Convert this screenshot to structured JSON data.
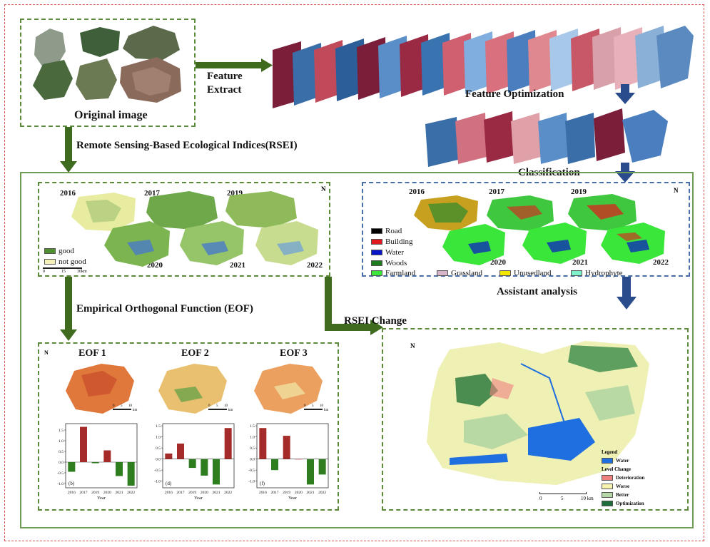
{
  "labels": {
    "original_image": "Original image",
    "feature_extract_1": "Feature",
    "feature_extract_2": "Extract",
    "feature_optimization": "Feature Optimization",
    "classification": "Classification",
    "rsei": "Remote Sensing-Based Ecological Indices(RSEI)",
    "eof": "Empirical Orthogonal Function (EOF)",
    "rsei_change": "RSEI Change",
    "assistant_analysis": "Assistant analysis"
  },
  "rsei_panel": {
    "years": [
      "2016",
      "2017",
      "2019",
      "2020",
      "2021",
      "2022"
    ],
    "legend": [
      {
        "label": "good",
        "color": "#4f8f2f"
      },
      {
        "label": "not good",
        "color": "#f4f0b8"
      }
    ],
    "scale": [
      "0",
      "15",
      "30km"
    ],
    "north": "N"
  },
  "class_panel": {
    "years": [
      "2016",
      "2017",
      "2019",
      "2020",
      "2021",
      "2022"
    ],
    "legend": [
      {
        "label": "Road",
        "color": "#000000"
      },
      {
        "label": "Building",
        "color": "#e31a1c"
      },
      {
        "label": "Water",
        "color": "#0a14c8"
      },
      {
        "label": "Woods",
        "color": "#1e7d1e"
      },
      {
        "label": "Farmland",
        "color": "#39e639"
      },
      {
        "label": "Grassland",
        "color": "#d8b4c8"
      },
      {
        "label": "Unusedland",
        "color": "#f2e600"
      },
      {
        "label": "Hydrophyte",
        "color": "#7ff0c8"
      }
    ],
    "north": "N"
  },
  "eof_panel": {
    "north": "N",
    "maps": [
      {
        "title": "EOF 1",
        "scale": [
          "0",
          "5",
          "10"
        ],
        "unit": "km"
      },
      {
        "title": "EOF 2",
        "scale": [
          "0",
          "5",
          "10"
        ],
        "unit": "km"
      },
      {
        "title": "EOF 3",
        "scale": [
          "0",
          "5",
          "10"
        ],
        "unit": "km"
      }
    ]
  },
  "chart_data": [
    {
      "type": "bar",
      "panel_label": "(b)",
      "categories": [
        "2016",
        "2017",
        "2019",
        "2020",
        "2021",
        "2022"
      ],
      "values": [
        -0.45,
        1.65,
        -0.05,
        0.55,
        -0.65,
        -1.1
      ],
      "ylim": [
        -1.2,
        1.8
      ],
      "yticks": [
        "1.5",
        "1.0",
        "0.5",
        "0.0",
        "-0.5",
        "-1.0"
      ],
      "ytick_values": [
        1.5,
        1.0,
        0.5,
        0.0,
        -0.5,
        -1.0
      ],
      "xlabel": "Year",
      "colors": {
        "positive": "#a52a2a",
        "negative": "#2e7d1e"
      }
    },
    {
      "type": "bar",
      "panel_label": "(d)",
      "categories": [
        "2016",
        "2017",
        "2019",
        "2020",
        "2021",
        "2022"
      ],
      "values": [
        0.25,
        0.7,
        -0.4,
        -0.75,
        -1.15,
        1.4
      ],
      "ylim": [
        -1.3,
        1.6
      ],
      "yticks": [
        "1.5",
        "1.0",
        "0.5",
        "0.0",
        "-0.5",
        "-1.0"
      ],
      "ytick_values": [
        1.5,
        1.0,
        0.5,
        0.0,
        -0.5,
        -1.0
      ],
      "xlabel": "Year",
      "colors": {
        "positive": "#a52a2a",
        "negative": "#2e7d1e"
      }
    },
    {
      "type": "bar",
      "panel_label": "(f)",
      "categories": [
        "2016",
        "2017",
        "2019",
        "2020",
        "2021",
        "2022"
      ],
      "values": [
        1.4,
        -0.5,
        1.05,
        0.0,
        -1.15,
        -0.7
      ],
      "ylim": [
        -1.3,
        1.6
      ],
      "yticks": [
        "1.5",
        "1.0",
        "0.5",
        "0.0",
        "-0.5",
        "-1.0"
      ],
      "ytick_values": [
        1.5,
        1.0,
        0.5,
        0.0,
        -0.5,
        -1.0
      ],
      "xlabel": "Year",
      "colors": {
        "positive": "#a52a2a",
        "negative": "#2e7d1e"
      }
    }
  ],
  "change_panel": {
    "north": "N",
    "legend_title": "Legend",
    "water": {
      "label": "Water",
      "color": "#1f6fe0"
    },
    "level_title": "Level Change",
    "levels": [
      {
        "label": "Deterioration",
        "color": "#f08080"
      },
      {
        "label": "Worse",
        "color": "#f6f2b0"
      },
      {
        "label": "Better",
        "color": "#b5d6a6"
      },
      {
        "label": "Optimization",
        "color": "#1f6b3a"
      }
    ],
    "scale": [
      "0",
      "5",
      "10 km"
    ]
  },
  "colors": {
    "arrow_green": "#3f6b1f",
    "arrow_blue": "#2a4b8c",
    "frame_green": "#5a8a3a",
    "frame_blue": "#4a6ea8",
    "frame_red": "#d9534f"
  }
}
